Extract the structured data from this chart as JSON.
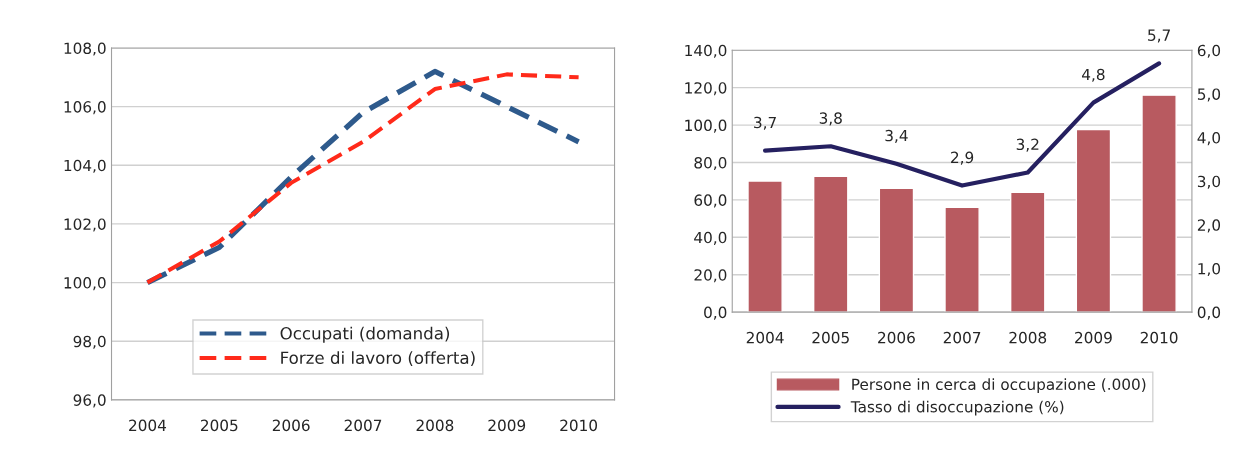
{
  "chart_data": [
    {
      "type": "line",
      "categories": [
        "2004",
        "2005",
        "2006",
        "2007",
        "2008",
        "2009",
        "2010"
      ],
      "series": [
        {
          "name": "Occupati (domanda)",
          "color": "#2e5a8c",
          "line_style": "dashed",
          "values": [
            100.0,
            101.2,
            103.6,
            105.8,
            107.2,
            106.0,
            104.8
          ]
        },
        {
          "name": "Forze di lavoro (offerta)",
          "color": "#ff2a1a",
          "line_style": "dashed",
          "values": [
            100.0,
            101.4,
            103.4,
            104.8,
            106.6,
            107.1,
            107.0
          ]
        }
      ],
      "ylim": [
        96,
        108
      ],
      "yticks": [
        {
          "value": 96,
          "label": "96,0"
        },
        {
          "value": 98,
          "label": "98,0"
        },
        {
          "value": 100,
          "label": "100,0"
        },
        {
          "value": 102,
          "label": "102,0"
        },
        {
          "value": 104,
          "label": "104,0"
        },
        {
          "value": 106,
          "label": "106,0"
        },
        {
          "value": 108,
          "label": "108,0"
        }
      ],
      "grid": "y",
      "legend": "bottom"
    },
    {
      "type": "bar",
      "categories": [
        "2004",
        "2005",
        "2006",
        "2007",
        "2008",
        "2009",
        "2010"
      ],
      "series": [
        {
          "name": "Persone in cerca di occupazione (.000)",
          "type": "bar",
          "color": "#b85a60",
          "values": [
            70.1,
            72.6,
            66.2,
            56.0,
            64.1,
            97.6,
            116.0
          ]
        },
        {
          "name": "Tasso di disoccupazione (%)",
          "type": "line",
          "axis": "y2",
          "color": "#252060",
          "line_style": "solid",
          "values": [
            3.7,
            3.8,
            3.4,
            2.9,
            3.2,
            4.8,
            5.7
          ],
          "value_labels": [
            "3,7",
            "3,8",
            "3,4",
            "2,9",
            "3,2",
            "4,8",
            "5,7"
          ]
        }
      ],
      "ylim": [
        0,
        140
      ],
      "yticks": [
        {
          "value": 0,
          "label": "0,0"
        },
        {
          "value": 20,
          "label": "20,0"
        },
        {
          "value": 40,
          "label": "40,0"
        },
        {
          "value": 60,
          "label": "60,0"
        },
        {
          "value": 80,
          "label": "80,0"
        },
        {
          "value": 100,
          "label": "100,0"
        },
        {
          "value": 120,
          "label": "120,0"
        },
        {
          "value": 140,
          "label": "140,0"
        }
      ],
      "y2lim": [
        0,
        6
      ],
      "y2ticks": [
        {
          "value": 0,
          "label": "0,0"
        },
        {
          "value": 1,
          "label": "1,0"
        },
        {
          "value": 2,
          "label": "2,0"
        },
        {
          "value": 3,
          "label": "3,0"
        },
        {
          "value": 4,
          "label": "4,0"
        },
        {
          "value": 5,
          "label": "5,0"
        },
        {
          "value": 6,
          "label": "6,0"
        }
      ],
      "grid": "y",
      "legend": "bottom"
    }
  ]
}
